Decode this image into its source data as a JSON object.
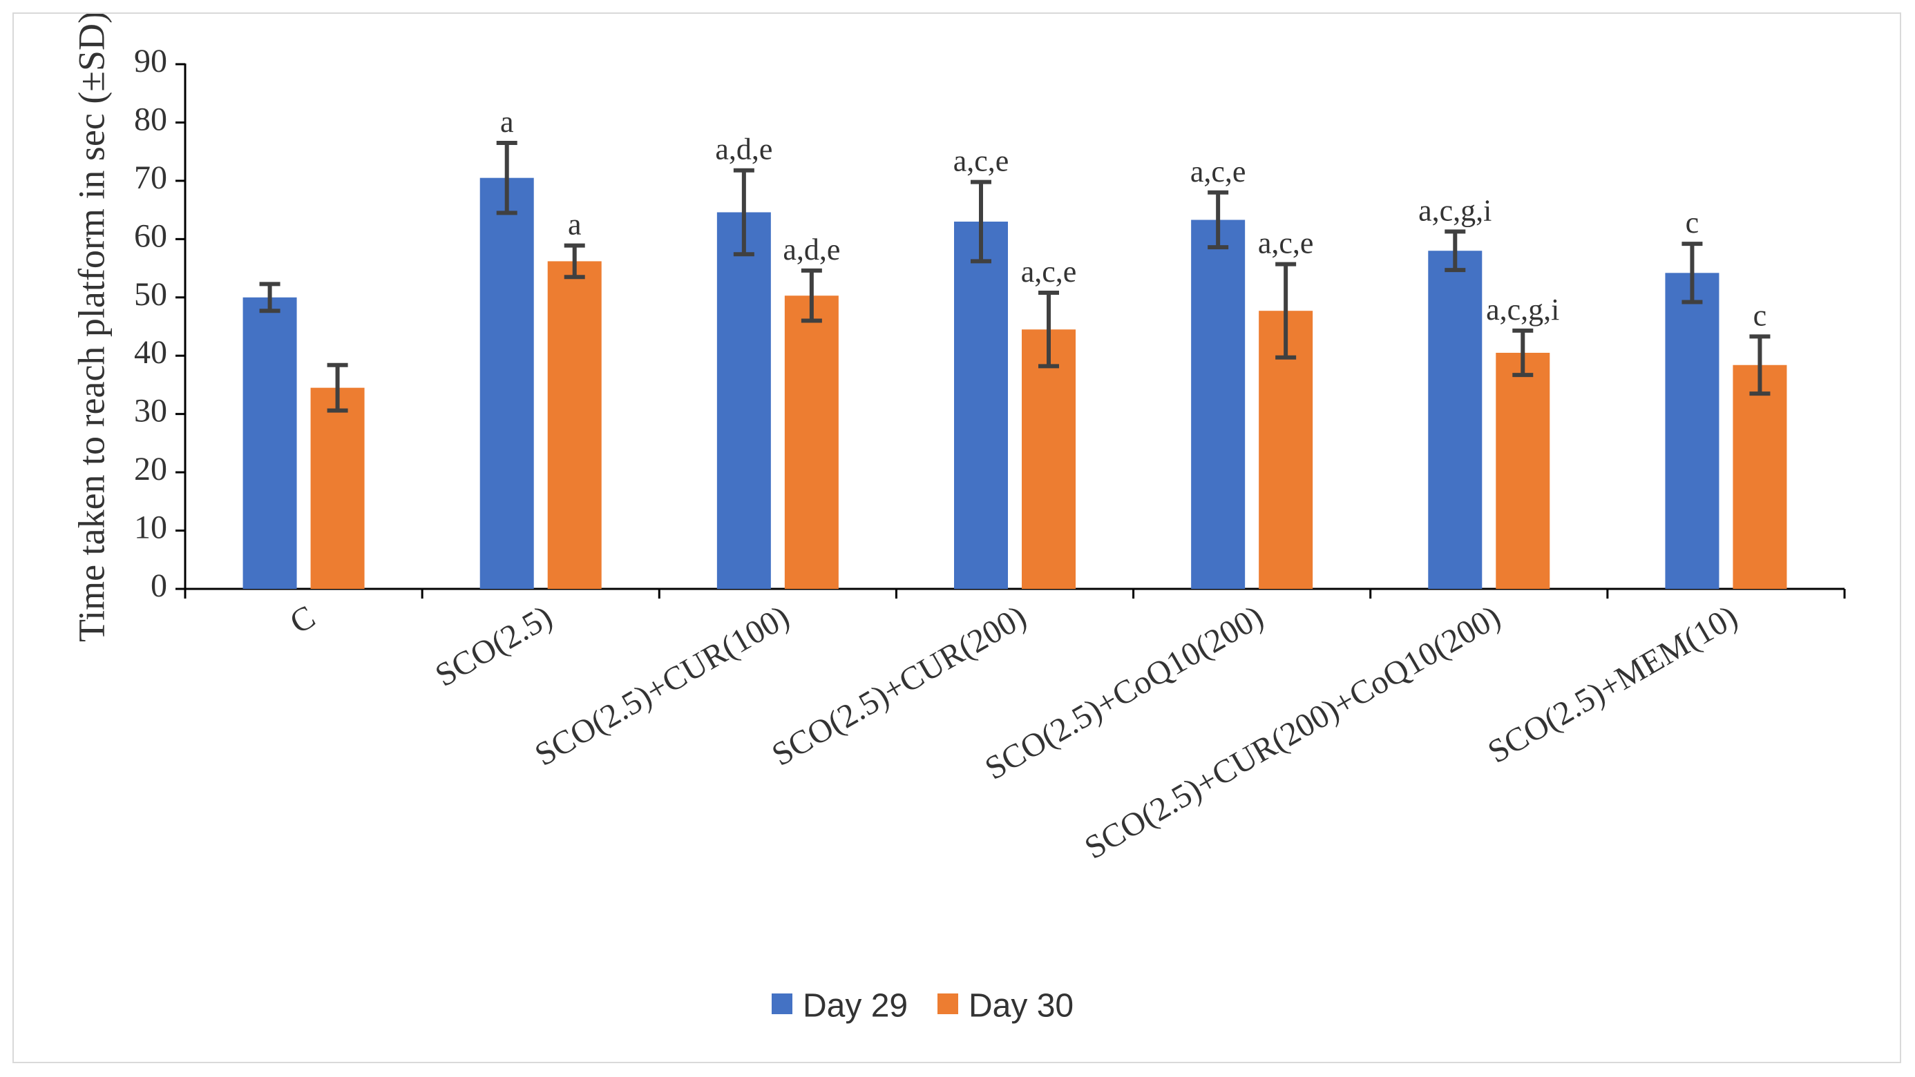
{
  "chart_data": {
    "type": "bar",
    "title": "",
    "xlabel": "",
    "ylabel": "Time taken to reach platform in sec (±SD)",
    "ylim": [
      0,
      90
    ],
    "ytick_step": 10,
    "grid": false,
    "legend_position": "bottom",
    "categories": [
      "C",
      "SCO(2.5)",
      "SCO(2.5)+CUR(100)",
      "SCO(2.5)+CUR(200)",
      "SCO(2.5)+CoQ10(200)",
      "SCO(2.5)+CUR(200)+CoQ10(200)",
      "SCO(2.5)+MEM(10)"
    ],
    "series": [
      {
        "name": "Day 29",
        "color": "#4472C4",
        "values": [
          50,
          70.5,
          64.6,
          63,
          63.3,
          58,
          54.2
        ],
        "errors": [
          2.3,
          6,
          7.2,
          6.8,
          4.7,
          3.3,
          5
        ],
        "annotations": [
          "",
          "a",
          "a,d,e",
          "a,c,e",
          "a,c,e",
          "a,c,g,i",
          "c"
        ]
      },
      {
        "name": "Day 30",
        "color": "#ED7D31",
        "values": [
          34.5,
          56.2,
          50.3,
          44.5,
          47.7,
          40.5,
          38.4
        ],
        "errors": [
          3.9,
          2.7,
          4.3,
          6.3,
          8,
          3.8,
          4.9
        ],
        "annotations": [
          "",
          "a",
          "a,d,e",
          "a,c,e",
          "a,c,e",
          "a,c,g,i",
          "c"
        ]
      }
    ]
  }
}
